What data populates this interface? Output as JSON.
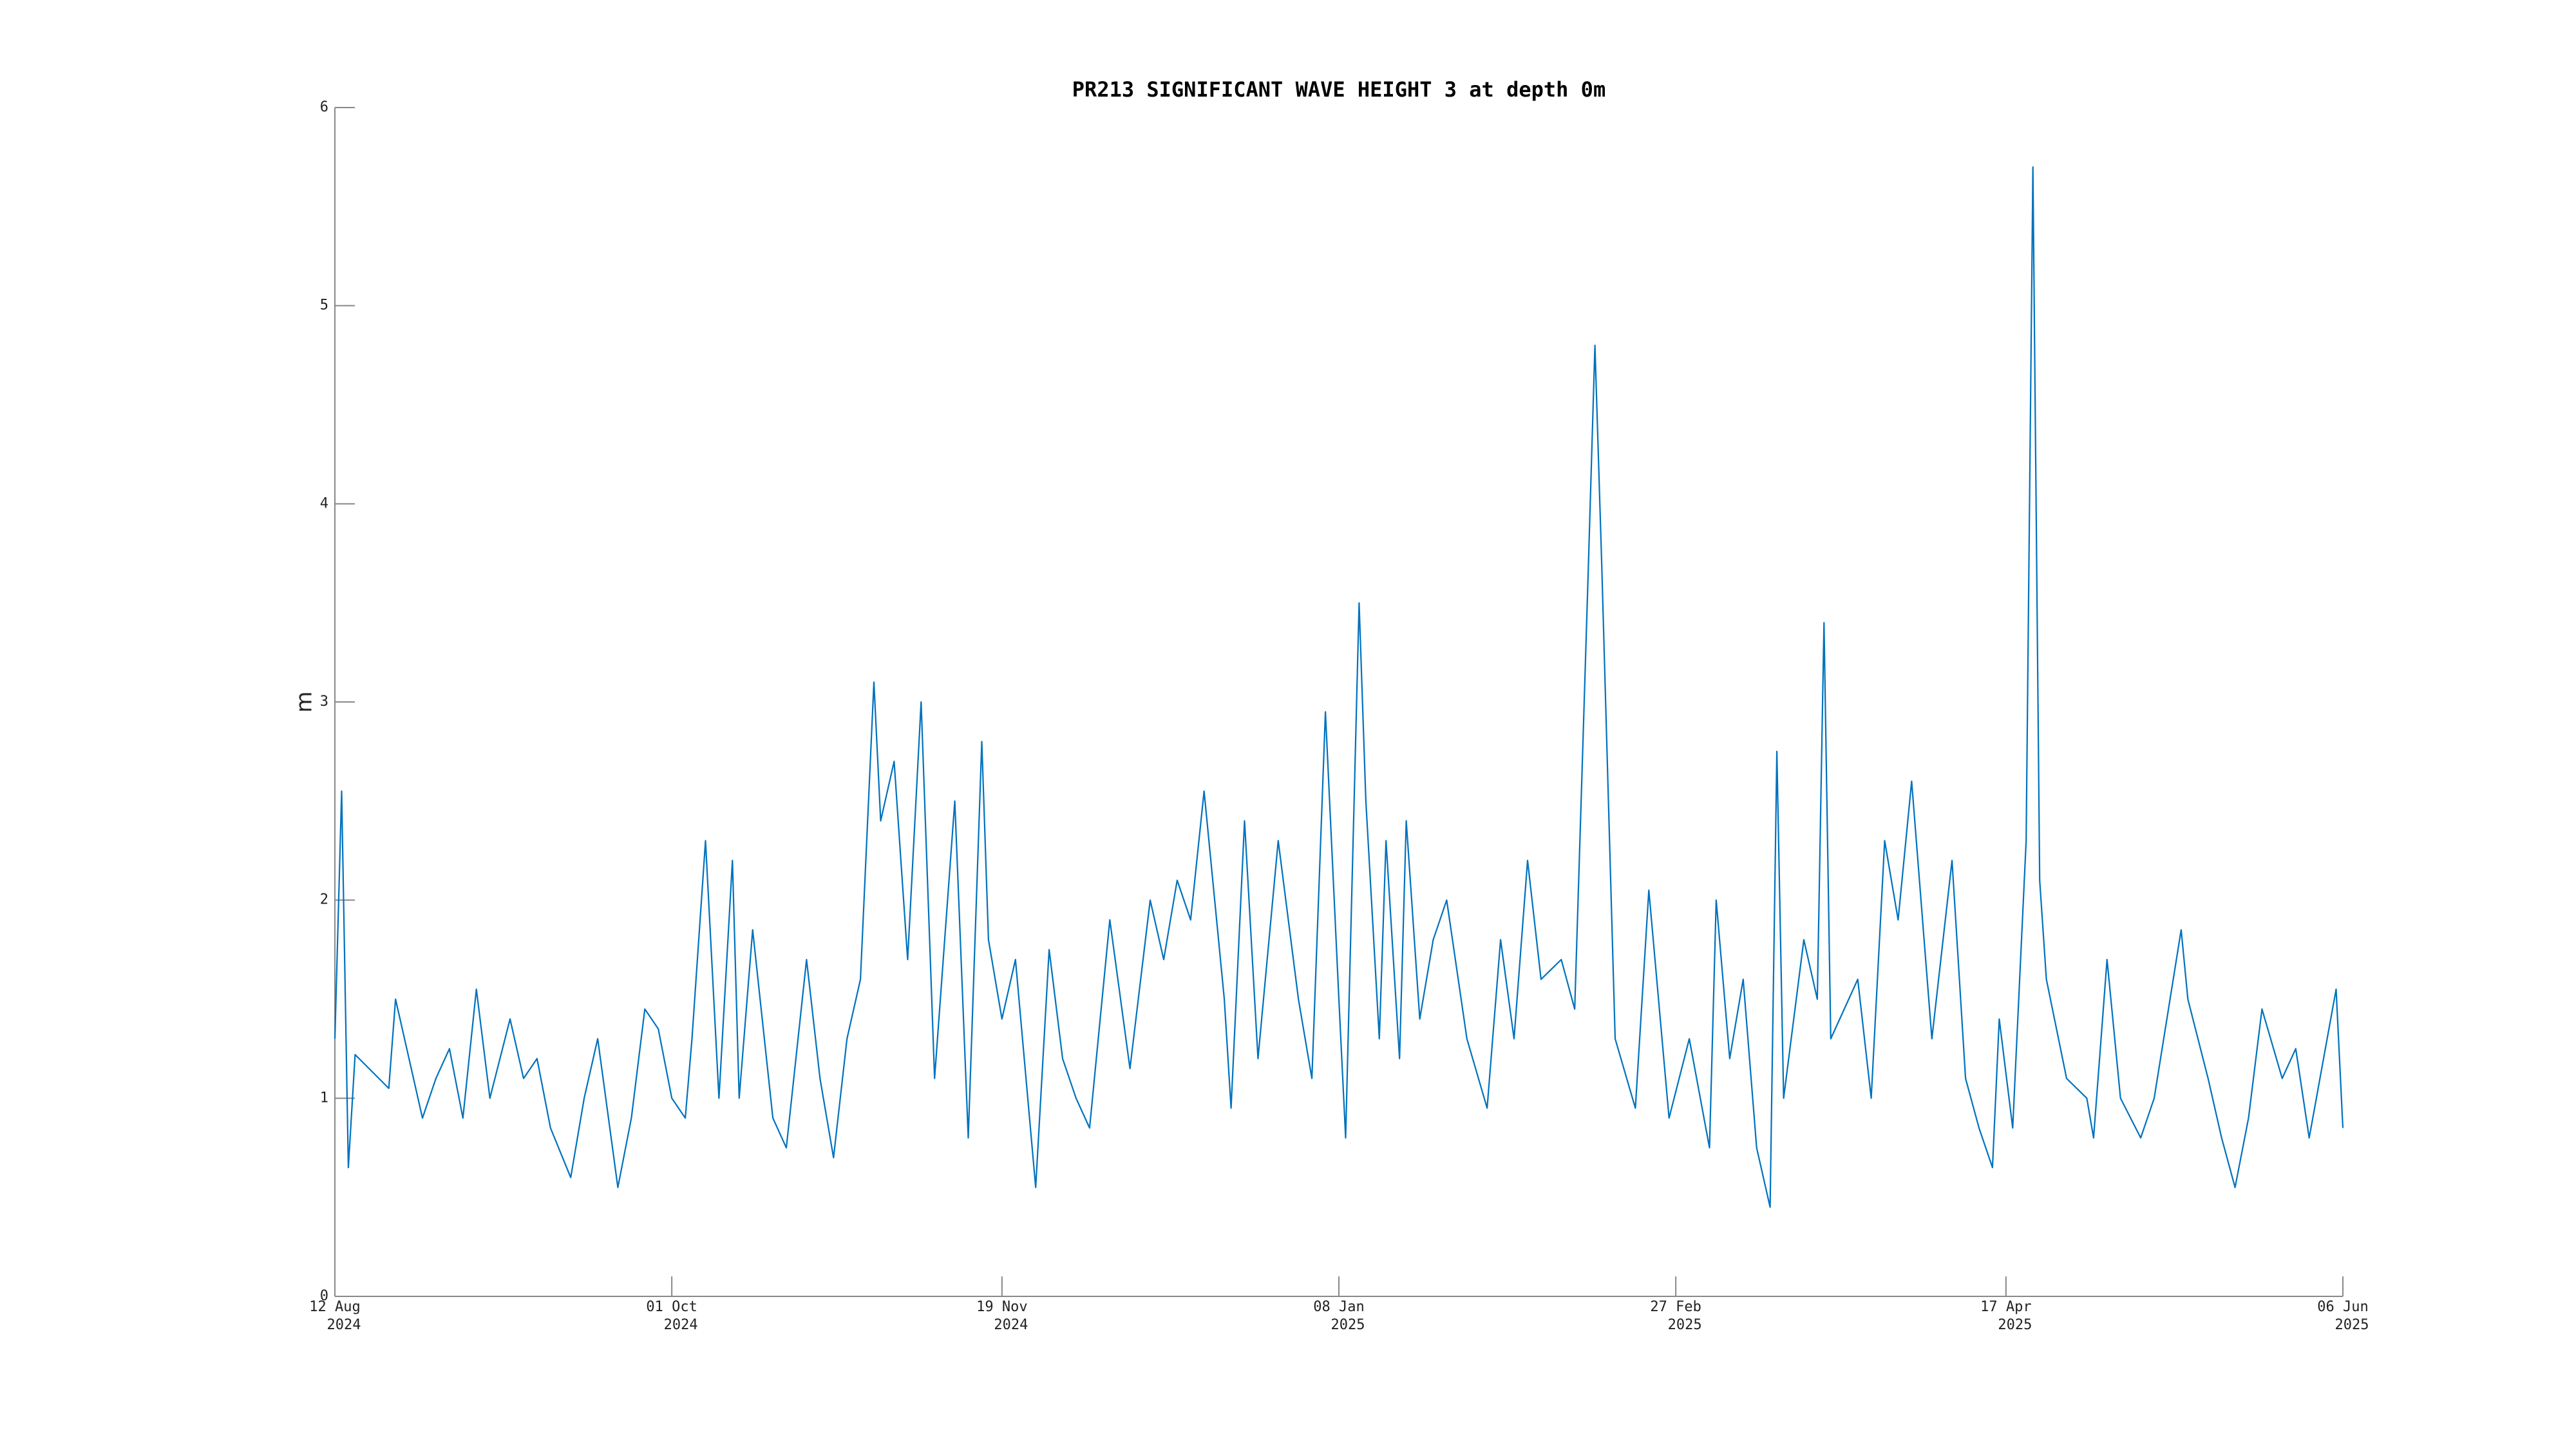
{
  "chart_data": {
    "type": "line",
    "title": "PR213 SIGNIFICANT WAVE HEIGHT 3 at depth 0m",
    "ylabel": "m",
    "color": "#0072bd",
    "xlim": [
      "2024-08-12",
      "2025-06-06"
    ],
    "xticks": [
      {
        "value": "2024-08-12",
        "label": [
          "12 Aug",
          "2024"
        ]
      },
      {
        "value": "2024-10-01",
        "label": [
          "01 Oct",
          "2024"
        ]
      },
      {
        "value": "2024-11-19",
        "label": [
          "19 Nov",
          "2024"
        ]
      },
      {
        "value": "2025-01-08",
        "label": [
          "08 Jan",
          "2025"
        ]
      },
      {
        "value": "2025-02-27",
        "label": [
          "27 Feb",
          "2025"
        ]
      },
      {
        "value": "2025-04-17",
        "label": [
          "17 Apr",
          "2025"
        ]
      },
      {
        "value": "2025-06-06",
        "label": [
          "06 Jun",
          "2025"
        ]
      }
    ],
    "ylim": [
      0,
      6
    ],
    "yticks": [
      0,
      1,
      2,
      3,
      4,
      5,
      6
    ],
    "x": [
      "2024-08-12",
      "2024-08-13",
      "2024-08-14",
      "2024-08-15",
      "2024-08-20",
      "2024-08-21",
      "2024-08-23",
      "2024-08-25",
      "2024-08-27",
      "2024-08-29",
      "2024-08-31",
      "2024-09-02",
      "2024-09-04",
      "2024-09-07",
      "2024-09-09",
      "2024-09-11",
      "2024-09-13",
      "2024-09-16",
      "2024-09-18",
      "2024-09-20",
      "2024-09-22",
      "2024-09-23",
      "2024-09-25",
      "2024-09-27",
      "2024-09-29",
      "2024-10-01",
      "2024-10-03",
      "2024-10-04",
      "2024-10-06",
      "2024-10-08",
      "2024-10-10",
      "2024-10-11",
      "2024-10-13",
      "2024-10-16",
      "2024-10-18",
      "2024-10-21",
      "2024-10-23",
      "2024-10-25",
      "2024-10-27",
      "2024-10-29",
      "2024-10-31",
      "2024-11-01",
      "2024-11-03",
      "2024-11-05",
      "2024-11-07",
      "2024-11-09",
      "2024-11-12",
      "2024-11-14",
      "2024-11-16",
      "2024-11-17",
      "2024-11-19",
      "2024-11-21",
      "2024-11-24",
      "2024-11-26",
      "2024-11-28",
      "2024-11-30",
      "2024-12-02",
      "2024-12-05",
      "2024-12-08",
      "2024-12-11",
      "2024-12-13",
      "2024-12-15",
      "2024-12-17",
      "2024-12-19",
      "2024-12-22",
      "2024-12-23",
      "2024-12-25",
      "2024-12-27",
      "2024-12-30",
      "2025-01-02",
      "2025-01-04",
      "2025-01-06",
      "2025-01-08",
      "2025-01-09",
      "2025-01-11",
      "2025-01-12",
      "2025-01-14",
      "2025-01-15",
      "2025-01-17",
      "2025-01-18",
      "2025-01-20",
      "2025-01-22",
      "2025-01-24",
      "2025-01-27",
      "2025-01-30",
      "2025-02-01",
      "2025-02-03",
      "2025-02-05",
      "2025-02-07",
      "2025-02-10",
      "2025-02-12",
      "2025-02-14",
      "2025-02-15",
      "2025-02-16",
      "2025-02-18",
      "2025-02-21",
      "2025-02-23",
      "2025-02-26",
      "2025-03-01",
      "2025-03-04",
      "2025-03-05",
      "2025-03-07",
      "2025-03-09",
      "2025-03-11",
      "2025-03-13",
      "2025-03-14",
      "2025-03-15",
      "2025-03-18",
      "2025-03-20",
      "2025-03-21",
      "2025-03-22",
      "2025-03-26",
      "2025-03-28",
      "2025-03-30",
      "2025-04-01",
      "2025-04-03",
      "2025-04-06",
      "2025-04-09",
      "2025-04-11",
      "2025-04-13",
      "2025-04-15",
      "2025-04-16",
      "2025-04-18",
      "2025-04-20",
      "2025-04-21",
      "2025-04-22",
      "2025-04-23",
      "2025-04-26",
      "2025-04-29",
      "2025-04-30",
      "2025-05-02",
      "2025-05-04",
      "2025-05-07",
      "2025-05-09",
      "2025-05-13",
      "2025-05-14",
      "2025-05-17",
      "2025-05-19",
      "2025-05-21",
      "2025-05-23",
      "2025-05-25",
      "2025-05-28",
      "2025-05-30",
      "2025-06-01",
      "2025-06-05",
      "2025-06-06"
    ],
    "values": [
      1.3,
      2.55,
      0.65,
      1.22,
      1.05,
      1.5,
      1.2,
      0.9,
      1.1,
      1.25,
      0.9,
      1.55,
      1.0,
      1.4,
      1.1,
      1.2,
      0.85,
      0.6,
      1.0,
      1.3,
      0.8,
      0.55,
      0.9,
      1.45,
      1.35,
      1.0,
      0.9,
      1.3,
      2.3,
      1.0,
      2.2,
      1.0,
      1.85,
      0.9,
      0.75,
      1.7,
      1.1,
      0.7,
      1.3,
      1.6,
      3.1,
      2.4,
      2.7,
      1.7,
      3.0,
      1.1,
      2.5,
      0.8,
      2.8,
      1.8,
      1.4,
      1.7,
      0.55,
      1.75,
      1.2,
      1.0,
      0.85,
      1.9,
      1.15,
      2.0,
      1.7,
      2.1,
      1.9,
      2.55,
      1.5,
      0.95,
      2.4,
      1.2,
      2.3,
      1.5,
      1.1,
      2.95,
      1.5,
      0.8,
      3.5,
      2.5,
      1.3,
      2.3,
      1.2,
      2.4,
      1.4,
      1.8,
      2.0,
      1.3,
      0.95,
      1.8,
      1.3,
      2.2,
      1.6,
      1.7,
      1.45,
      3.65,
      4.8,
      3.7,
      1.3,
      0.95,
      2.05,
      0.9,
      1.3,
      0.75,
      2.0,
      1.2,
      1.6,
      0.75,
      0.45,
      2.75,
      1.0,
      1.8,
      1.5,
      3.4,
      1.3,
      1.6,
      1.0,
      2.3,
      1.9,
      2.6,
      1.3,
      2.2,
      1.1,
      0.85,
      0.65,
      1.4,
      0.85,
      2.3,
      5.7,
      2.1,
      1.6,
      1.1,
      1.0,
      0.8,
      1.7,
      1.0,
      0.8,
      1.0,
      1.85,
      1.5,
      1.1,
      0.8,
      0.55,
      0.9,
      1.45,
      1.1,
      1.25,
      0.8,
      1.55,
      0.85
    ]
  }
}
